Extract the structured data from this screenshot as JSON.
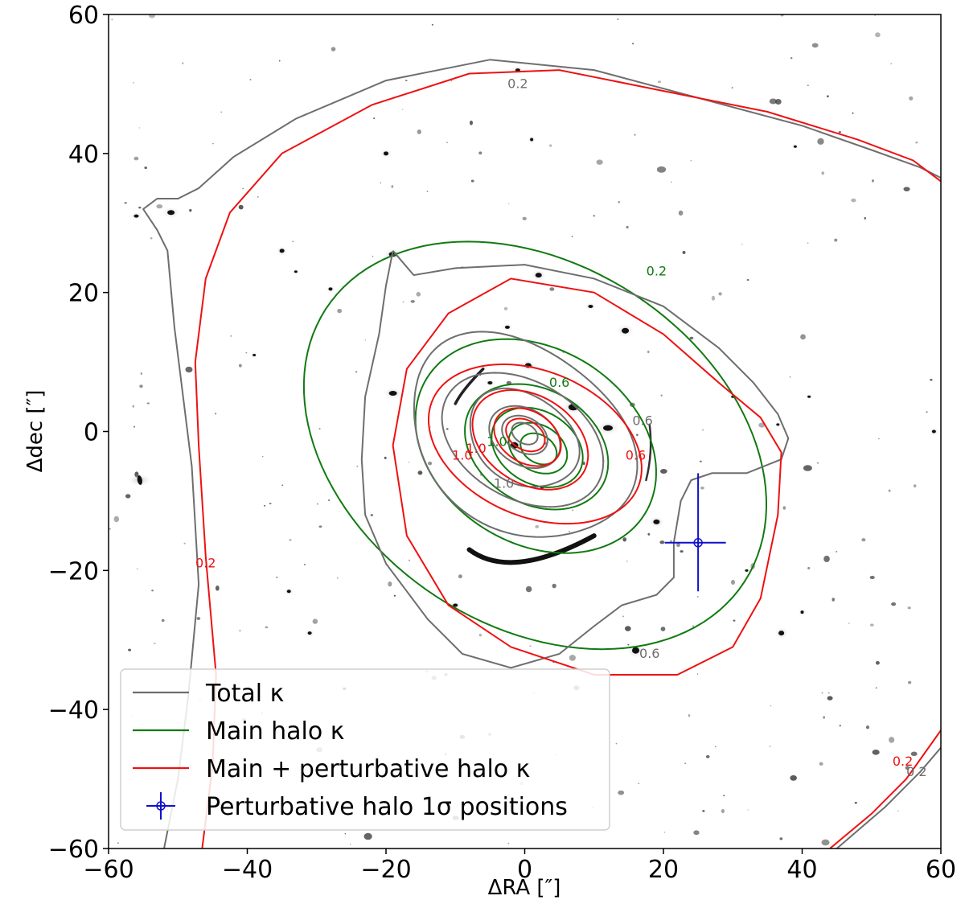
{
  "chart_data": {
    "type": "contour",
    "title": "",
    "xlabel": "ΔRA [″]",
    "ylabel": "Δdec [″]",
    "xlim": [
      -60,
      60
    ],
    "ylim": [
      -60,
      60
    ],
    "xticks": [
      -60,
      -40,
      -20,
      0,
      20,
      40,
      60
    ],
    "yticks": [
      -60,
      -40,
      -20,
      0,
      20,
      40,
      60
    ],
    "xtick_labels": [
      "−60",
      "−40",
      "−20",
      "0",
      "20",
      "40",
      "60"
    ],
    "ytick_labels": [
      "−60",
      "−40",
      "−20",
      "0",
      "20",
      "40",
      "60"
    ],
    "background": "grayscale inverted HST cluster image",
    "legend_position": "lower-left",
    "series": [
      {
        "name": "Total κ",
        "color": "#6e6e6e",
        "levels": [
          0.2,
          0.6,
          1.0
        ]
      },
      {
        "name": "Main halo κ",
        "color": "#117a11",
        "levels": [
          0.2,
          0.6,
          1.0
        ]
      },
      {
        "name": "Main + perturbative halo κ",
        "color": "#ee1111",
        "levels": [
          0.2,
          0.6,
          1.0
        ]
      }
    ],
    "perturber": {
      "name": "Perturbative halo 1σ positions",
      "color": "#1010c8",
      "x": 25,
      "y": -16,
      "x_err": [
        4.8,
        4.0
      ],
      "y_err": [
        10.0,
        7.0
      ]
    },
    "contour_labels": [
      {
        "text": "0.2",
        "color": "#6e6e6e",
        "x": -1,
        "y": 50
      },
      {
        "text": "0.2",
        "color": "#117a11",
        "x": 19,
        "y": 23
      },
      {
        "text": "0.2",
        "color": "#ee1111",
        "x": -46,
        "y": -19
      },
      {
        "text": "0.2",
        "color": "#ee1111",
        "x": 54.5,
        "y": -47.5
      },
      {
        "text": "0.2",
        "color": "#6e6e6e",
        "x": 56.5,
        "y": -49
      },
      {
        "text": "0.6",
        "color": "#117a11",
        "x": 5,
        "y": 7
      },
      {
        "text": "0.6",
        "color": "#6e6e6e",
        "x": 17,
        "y": 1.5
      },
      {
        "text": "0.6",
        "color": "#ee1111",
        "x": 16,
        "y": -3.5
      },
      {
        "text": "0.6",
        "color": "#6e6e6e",
        "x": 18,
        "y": -32
      },
      {
        "text": "1.0",
        "color": "#ee1111",
        "x": -7,
        "y": -2.5
      },
      {
        "text": "1.0",
        "color": "#117a11",
        "x": -4,
        "y": -1.5
      },
      {
        "text": "1.0",
        "color": "#6e6e6e",
        "x": -3,
        "y": -7.5
      },
      {
        "text": "1.0",
        "color": "#ee1111",
        "x": -9,
        "y": -3.5
      }
    ]
  }
}
